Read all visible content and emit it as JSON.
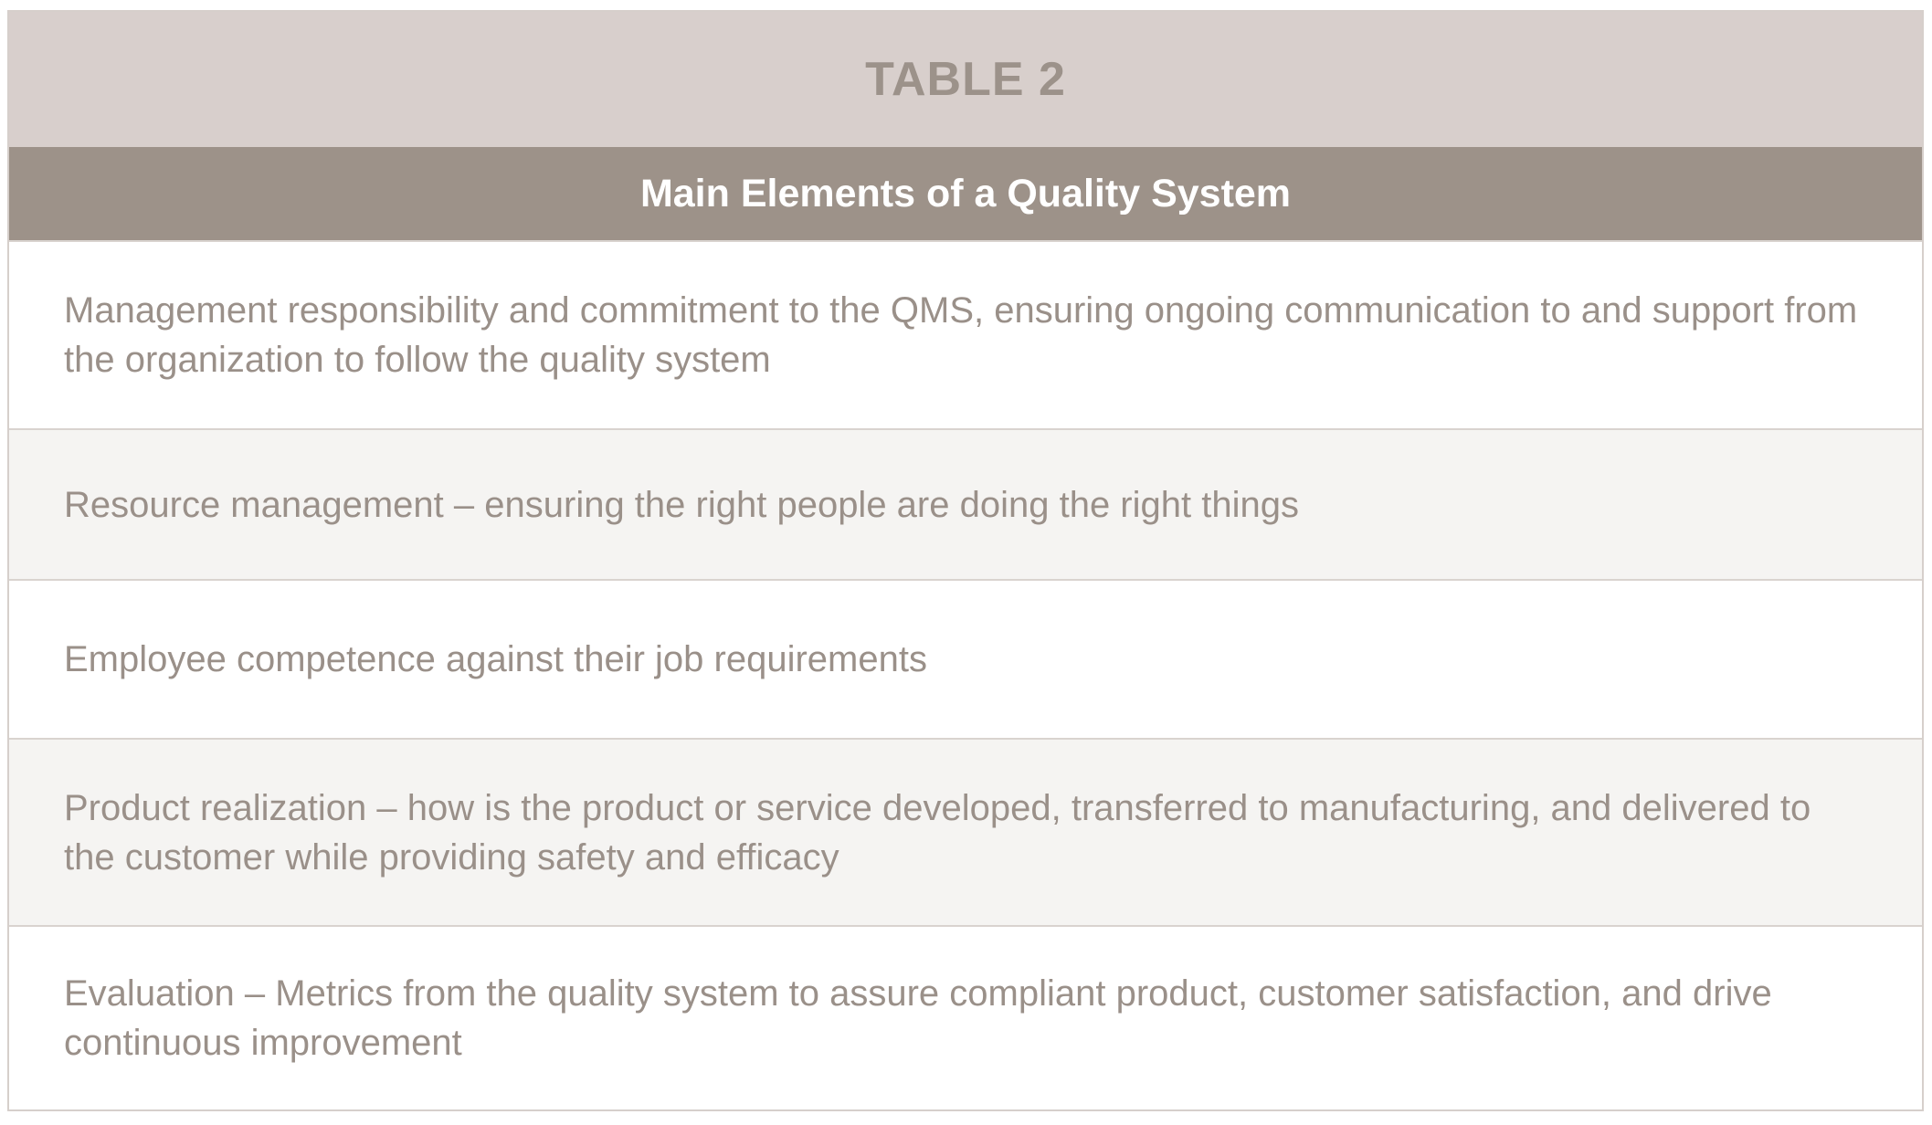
{
  "table": {
    "label": "TABLE 2",
    "title": "Main Elements of a Quality System",
    "rows": [
      {
        "text": "Management responsibility and commitment to the QMS, ensuring ongoing communication to and support from the organization to follow the quality system"
      },
      {
        "text": "Resource management – ensuring the right people are doing the right things"
      },
      {
        "text": "Employee competence against their job requirements"
      },
      {
        "text": "Product realization – how is the product or service developed, transferred to manufacturing, and delivered to the customer while providing safety and efficacy"
      },
      {
        "text": "Evaluation – Metrics from the quality system to assure compliant product, customer satisfaction, and drive continuous improvement"
      }
    ]
  },
  "colors": {
    "label_bar": "#d8cfcc",
    "title_bar": "#9d9289",
    "text": "#9a9089",
    "shaded_row": "#f5f4f2"
  }
}
